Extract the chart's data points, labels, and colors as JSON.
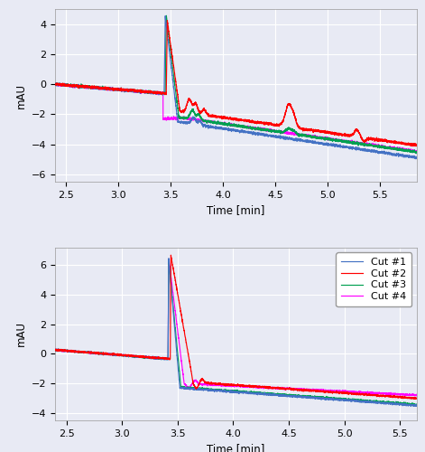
{
  "top_panel": {
    "xlim": [
      2.4,
      5.85
    ],
    "ylim": [
      -6.5,
      5.0
    ],
    "yticks": [
      -6,
      -4,
      -2,
      0,
      2,
      4
    ],
    "xticks": [
      2.5,
      3.0,
      3.5,
      4.0,
      4.5,
      5.0,
      5.5
    ],
    "xlabel": "Time [min]",
    "ylabel": "mAU"
  },
  "bottom_panel": {
    "xlim": [
      2.4,
      5.65
    ],
    "ylim": [
      -4.5,
      7.2
    ],
    "yticks": [
      -4,
      -2,
      0,
      2,
      4,
      6
    ],
    "xticks": [
      2.5,
      3.0,
      3.5,
      4.0,
      4.5,
      5.0,
      5.5
    ],
    "xlabel": "Time [min]",
    "ylabel": "mAU"
  },
  "colors": {
    "cut1": "#4472C4",
    "cut2": "#FF0000",
    "cut3": "#00A050",
    "cut4": "#FF00FF"
  },
  "legend": {
    "labels": [
      "Cut #1",
      "Cut #2",
      "Cut #3",
      "Cut #4"
    ],
    "colors": [
      "#4472C4",
      "#FF0000",
      "#00A050",
      "#FF00FF"
    ],
    "loc": "upper right"
  },
  "background_color": "#E8EAF4",
  "grid_color": "#FFFFFF",
  "linewidth": 0.85
}
